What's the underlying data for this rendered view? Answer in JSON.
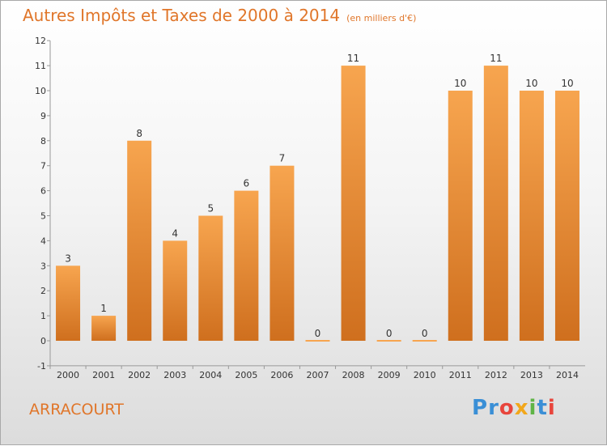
{
  "header": {
    "title": "Autres Impôts et Taxes de 2000 à 2014",
    "unit": "(en milliers d'€)"
  },
  "footer": {
    "place": "ARRACOURT",
    "brand": "Proxiti"
  },
  "colors": {
    "bar_top": "#f7a54f",
    "bar_bottom": "#cf6f1e",
    "title": "#e0762a",
    "axis": "#999999"
  },
  "chart_data": {
    "type": "bar",
    "title": "Autres Impôts et Taxes de 2000 à 2014",
    "categories": [
      "2000",
      "2001",
      "2002",
      "2003",
      "2004",
      "2005",
      "2006",
      "2007",
      "2008",
      "2009",
      "2010",
      "2011",
      "2012",
      "2013",
      "2014"
    ],
    "values": [
      3,
      1,
      8,
      4,
      5,
      6,
      7,
      0,
      11,
      0,
      0,
      10,
      11,
      10,
      10
    ],
    "ylim": [
      -1,
      12
    ],
    "yticks": [
      -1,
      0,
      1,
      2,
      3,
      4,
      5,
      6,
      7,
      8,
      9,
      10,
      11,
      12
    ],
    "grid": false,
    "legend": "none"
  }
}
